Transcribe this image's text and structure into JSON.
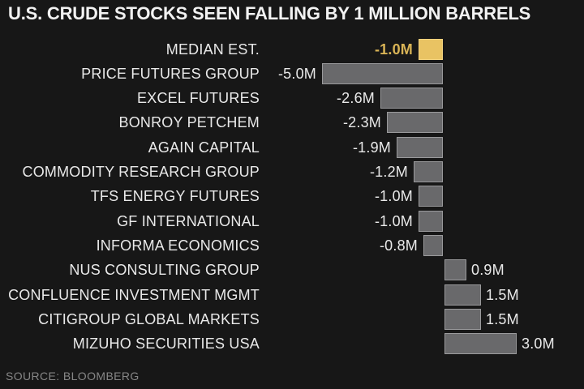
{
  "title": "U.S. CRUDE STOCKS SEEN FALLING BY 1 MILLION BARRELS",
  "source": "SOURCE: BLOOMBERG",
  "colors": {
    "background": "#171717",
    "bar_gray": "#69696b",
    "bar_gray_border": "#9a9a9c",
    "bar_gold": "#e9c363",
    "bar_gold_border": "#f3d37f",
    "text_white": "#e9e9e9",
    "text_gold": "#d9b456",
    "text_source": "#868686"
  },
  "chart_data": {
    "type": "bar",
    "orientation": "horizontal",
    "title": "U.S. CRUDE STOCKS SEEN FALLING BY 1 MILLION BARRELS",
    "xlabel": "",
    "ylabel": "",
    "unit": "million barrels",
    "xlim": [
      -5.0,
      3.0
    ],
    "grid": false,
    "axis_line_visible": false,
    "value_labels_visible": true,
    "categories": [
      "MEDIAN EST.",
      "PRICE FUTURES GROUP",
      "EXCEL FUTURES",
      "BONROY PETCHEM",
      "AGAIN CAPITAL",
      "COMMODITY RESEARCH GROUP",
      "TFS ENERGY FUTURES",
      "GF INTERNATIONAL",
      "INFORMA ECONOMICS",
      "NUS CONSULTING GROUP",
      "CONFLUENCE INVESTMENT MGMT",
      "CITIGROUP GLOBAL MARKETS",
      "MIZUHO SECURITIES USA"
    ],
    "values": [
      -1.0,
      -5.0,
      -2.6,
      -2.3,
      -1.9,
      -1.2,
      -1.0,
      -1.0,
      -0.8,
      0.9,
      1.5,
      1.5,
      3.0
    ],
    "value_labels": [
      "-1.0M",
      "-5.0M",
      "-2.6M",
      "-2.3M",
      "-1.9M",
      "-1.2M",
      "-1.0M",
      "-1.0M",
      "-0.8M",
      "0.9M",
      "1.5M",
      "1.5M",
      "3.0M"
    ],
    "highlighted_category": "MEDIAN EST.",
    "highlight_color": "#e9c363",
    "bar_color": "#69696b",
    "source": "SOURCE: BLOOMBERG"
  }
}
